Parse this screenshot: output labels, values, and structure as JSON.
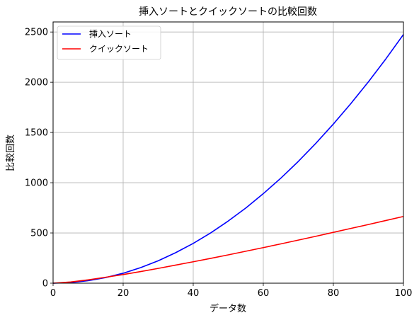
{
  "chart_data": {
    "type": "line",
    "title": "挿入ソートとクイックソートの比較回数",
    "xlabel": "データ数",
    "ylabel": "比較回数",
    "xlim": [
      0,
      100
    ],
    "ylim": [
      0,
      2600
    ],
    "x_ticks": [
      0,
      20,
      40,
      60,
      80,
      100
    ],
    "y_ticks": [
      0,
      500,
      1000,
      1500,
      2000,
      2500
    ],
    "grid": true,
    "legend_position": "upper-left",
    "x": [
      0,
      5,
      10,
      15,
      20,
      25,
      30,
      35,
      40,
      45,
      50,
      55,
      60,
      65,
      70,
      75,
      80,
      85,
      90,
      95,
      100
    ],
    "series": [
      {
        "name": "挿入ソート",
        "color": "#0000ff",
        "values": [
          0,
          6,
          25,
          56,
          99,
          155,
          223,
          304,
          396,
          501,
          619,
          748,
          891,
          1045,
          1212,
          1392,
          1584,
          1788,
          2004,
          2233,
          2475
        ]
      },
      {
        "name": "クイックソート",
        "color": "#ff0000",
        "values": [
          0,
          12,
          33,
          59,
          86,
          116,
          147,
          180,
          213,
          247,
          282,
          318,
          354,
          391,
          429,
          467,
          506,
          545,
          584,
          624,
          664
        ]
      }
    ]
  }
}
